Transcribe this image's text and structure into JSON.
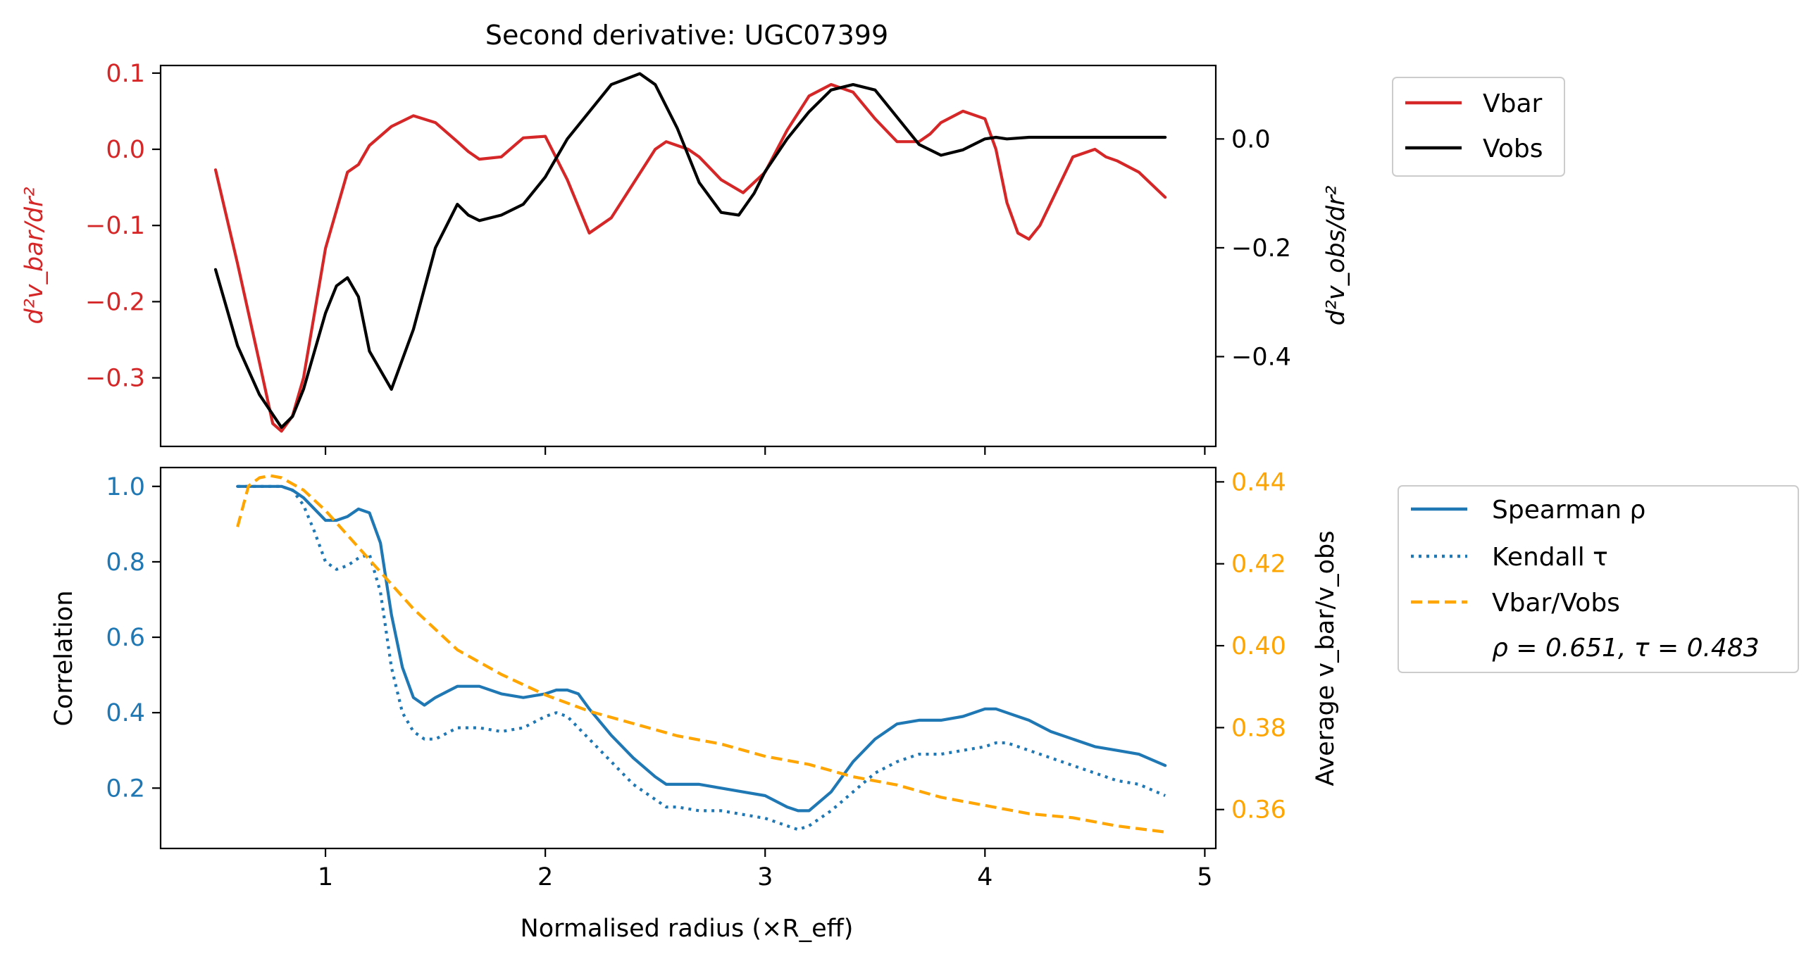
{
  "chart_data": [
    {
      "type": "line",
      "title": "Second derivative: UGC07399",
      "ylabel_left": "d²v_bar/dr²",
      "ylabel_right": "d²v_obs/dr²",
      "xlim": [
        0.25,
        5.05
      ],
      "ylim_left": [
        -0.39,
        0.11
      ],
      "ylim_right": [
        -0.565,
        0.135
      ],
      "yticks_left": [
        0.1,
        0.0,
        -0.1,
        -0.2,
        -0.3
      ],
      "ytick_labels_left": [
        "0.1",
        "0.0",
        "−0.1",
        "−0.2",
        "−0.3"
      ],
      "yticks_right": [
        0.0,
        -0.2,
        -0.4
      ],
      "ytick_labels_right": [
        "0.0",
        "−0.2",
        "−0.4"
      ],
      "xticks": [
        1,
        2,
        3,
        4,
        5
      ],
      "colors": {
        "left_axis": "#d62728",
        "right_axis": "#000000"
      },
      "legend": {
        "placement": "outside-right-top",
        "entries": [
          "Vbar",
          "Vobs"
        ]
      },
      "series": [
        {
          "name": "Vbar",
          "axis": "left",
          "color": "#d62728",
          "x": [
            0.5,
            0.6,
            0.7,
            0.76,
            0.8,
            0.85,
            0.9,
            1.0,
            1.1,
            1.15,
            1.2,
            1.3,
            1.4,
            1.5,
            1.6,
            1.65,
            1.7,
            1.8,
            1.9,
            2.0,
            2.1,
            2.2,
            2.3,
            2.4,
            2.5,
            2.55,
            2.6,
            2.65,
            2.7,
            2.8,
            2.9,
            3.0,
            3.1,
            3.2,
            3.3,
            3.4,
            3.5,
            3.6,
            3.7,
            3.75,
            3.8,
            3.9,
            4.0,
            4.05,
            4.1,
            4.15,
            4.2,
            4.25,
            4.3,
            4.4,
            4.5,
            4.55,
            4.6,
            4.7,
            4.82
          ],
          "y": [
            -0.027,
            -0.15,
            -0.28,
            -0.36,
            -0.37,
            -0.35,
            -0.3,
            -0.13,
            -0.03,
            -0.02,
            0.005,
            0.03,
            0.044,
            0.035,
            0.01,
            -0.003,
            -0.013,
            -0.01,
            0.015,
            0.017,
            -0.04,
            -0.11,
            -0.09,
            -0.045,
            0.0,
            0.01,
            0.005,
            0.0,
            -0.01,
            -0.04,
            -0.057,
            -0.03,
            0.025,
            0.07,
            0.085,
            0.075,
            0.04,
            0.01,
            0.01,
            0.02,
            0.035,
            0.05,
            0.04,
            0.0,
            -0.07,
            -0.11,
            -0.118,
            -0.1,
            -0.07,
            -0.01,
            0.0,
            -0.01,
            -0.015,
            -0.03,
            -0.063
          ]
        },
        {
          "name": "Vobs",
          "axis": "right",
          "color": "#000000",
          "x": [
            0.5,
            0.6,
            0.7,
            0.8,
            0.85,
            0.9,
            1.0,
            1.05,
            1.1,
            1.15,
            1.2,
            1.3,
            1.4,
            1.5,
            1.6,
            1.65,
            1.7,
            1.8,
            1.9,
            2.0,
            2.1,
            2.2,
            2.3,
            2.43,
            2.5,
            2.6,
            2.7,
            2.8,
            2.88,
            2.95,
            3.0,
            3.1,
            3.2,
            3.3,
            3.4,
            3.5,
            3.6,
            3.7,
            3.8,
            3.9,
            4.0,
            4.05,
            4.1,
            4.2,
            4.4,
            4.6,
            4.82
          ],
          "y": [
            -0.24,
            -0.38,
            -0.47,
            -0.53,
            -0.51,
            -0.46,
            -0.32,
            -0.27,
            -0.255,
            -0.29,
            -0.39,
            -0.46,
            -0.35,
            -0.2,
            -0.12,
            -0.14,
            -0.15,
            -0.14,
            -0.12,
            -0.07,
            0.0,
            0.05,
            0.1,
            0.12,
            0.1,
            0.02,
            -0.08,
            -0.135,
            -0.14,
            -0.1,
            -0.06,
            0.0,
            0.05,
            0.09,
            0.1,
            0.09,
            0.04,
            -0.01,
            -0.03,
            -0.02,
            0.0,
            0.003,
            0.0,
            0.003,
            0.003,
            0.003,
            0.003
          ]
        }
      ]
    },
    {
      "type": "line",
      "xlabel": "Normalised radius (×R_eff)",
      "ylabel_left": "Correlation",
      "ylabel_right": "Average v_bar/v_obs",
      "xlim": [
        0.25,
        5.05
      ],
      "ylim_left": [
        0.04,
        1.05
      ],
      "ylim_right": [
        0.3505,
        0.4435
      ],
      "yticks_left": [
        1.0,
        0.8,
        0.6,
        0.4,
        0.2
      ],
      "ytick_labels_left": [
        "1.0",
        "0.8",
        "0.6",
        "0.4",
        "0.2"
      ],
      "yticks_right": [
        0.44,
        0.42,
        0.4,
        0.38,
        0.36
      ],
      "ytick_labels_right": [
        "0.44",
        "0.42",
        "0.40",
        "0.38",
        "0.36"
      ],
      "xticks": [
        1,
        2,
        3,
        4,
        5
      ],
      "xtick_labels": [
        "1",
        "2",
        "3",
        "4",
        "5"
      ],
      "colors": {
        "left_axis": "#1f77b4",
        "right_axis": "#ffa500"
      },
      "legend": {
        "placement": "outside-right-top",
        "entries": [
          "Spearman ρ",
          "Kendall τ",
          "Vbar/Vobs",
          "ρ = 0.651, τ = 0.483"
        ]
      },
      "series": [
        {
          "name": "Spearman ρ",
          "axis": "left",
          "color": "#1f77b4",
          "style": "solid",
          "x": [
            0.6,
            0.7,
            0.8,
            0.85,
            0.9,
            1.0,
            1.05,
            1.1,
            1.15,
            1.2,
            1.25,
            1.3,
            1.35,
            1.4,
            1.45,
            1.5,
            1.6,
            1.7,
            1.8,
            1.9,
            2.0,
            2.05,
            2.1,
            2.15,
            2.2,
            2.3,
            2.4,
            2.5,
            2.55,
            2.6,
            2.7,
            2.8,
            2.9,
            3.0,
            3.1,
            3.15,
            3.2,
            3.3,
            3.4,
            3.5,
            3.6,
            3.7,
            3.8,
            3.9,
            4.0,
            4.05,
            4.1,
            4.2,
            4.3,
            4.4,
            4.5,
            4.6,
            4.7,
            4.82
          ],
          "y": [
            1.0,
            1.0,
            1.0,
            0.99,
            0.97,
            0.91,
            0.91,
            0.92,
            0.94,
            0.93,
            0.85,
            0.66,
            0.52,
            0.44,
            0.42,
            0.44,
            0.47,
            0.47,
            0.45,
            0.44,
            0.45,
            0.46,
            0.46,
            0.45,
            0.41,
            0.34,
            0.28,
            0.23,
            0.21,
            0.21,
            0.21,
            0.2,
            0.19,
            0.18,
            0.15,
            0.14,
            0.14,
            0.19,
            0.27,
            0.33,
            0.37,
            0.38,
            0.38,
            0.39,
            0.41,
            0.41,
            0.4,
            0.38,
            0.35,
            0.33,
            0.31,
            0.3,
            0.29,
            0.26
          ]
        },
        {
          "name": "Kendall τ",
          "axis": "left",
          "color": "#1f77b4",
          "style": "dotted",
          "x": [
            0.6,
            0.7,
            0.8,
            0.85,
            0.9,
            0.95,
            1.0,
            1.05,
            1.1,
            1.15,
            1.2,
            1.25,
            1.3,
            1.35,
            1.4,
            1.45,
            1.5,
            1.6,
            1.7,
            1.8,
            1.9,
            2.0,
            2.05,
            2.1,
            2.2,
            2.3,
            2.4,
            2.5,
            2.55,
            2.6,
            2.7,
            2.8,
            2.9,
            3.0,
            3.1,
            3.15,
            3.2,
            3.3,
            3.4,
            3.5,
            3.6,
            3.7,
            3.8,
            3.9,
            4.0,
            4.05,
            4.1,
            4.2,
            4.3,
            4.4,
            4.5,
            4.6,
            4.7,
            4.82
          ],
          "y": [
            1.0,
            1.0,
            1.0,
            0.99,
            0.95,
            0.88,
            0.8,
            0.78,
            0.79,
            0.81,
            0.82,
            0.72,
            0.52,
            0.4,
            0.35,
            0.33,
            0.33,
            0.36,
            0.36,
            0.35,
            0.36,
            0.39,
            0.4,
            0.39,
            0.33,
            0.27,
            0.21,
            0.17,
            0.15,
            0.15,
            0.14,
            0.14,
            0.13,
            0.12,
            0.1,
            0.09,
            0.1,
            0.14,
            0.19,
            0.24,
            0.27,
            0.29,
            0.29,
            0.3,
            0.31,
            0.32,
            0.32,
            0.3,
            0.28,
            0.26,
            0.24,
            0.22,
            0.21,
            0.18
          ]
        },
        {
          "name": "Vbar/Vobs",
          "axis": "right",
          "color": "#ffa500",
          "style": "dashed",
          "x": [
            0.6,
            0.65,
            0.7,
            0.75,
            0.8,
            0.9,
            1.0,
            1.1,
            1.2,
            1.3,
            1.4,
            1.5,
            1.6,
            1.8,
            2.0,
            2.2,
            2.4,
            2.6,
            2.8,
            3.0,
            3.2,
            3.4,
            3.6,
            3.8,
            4.0,
            4.2,
            4.4,
            4.6,
            4.82
          ],
          "y": [
            0.429,
            0.439,
            0.441,
            0.4415,
            0.441,
            0.438,
            0.433,
            0.427,
            0.421,
            0.415,
            0.409,
            0.404,
            0.399,
            0.393,
            0.388,
            0.384,
            0.381,
            0.378,
            0.376,
            0.373,
            0.371,
            0.368,
            0.366,
            0.363,
            0.361,
            0.359,
            0.358,
            0.356,
            0.3545
          ]
        }
      ]
    }
  ]
}
